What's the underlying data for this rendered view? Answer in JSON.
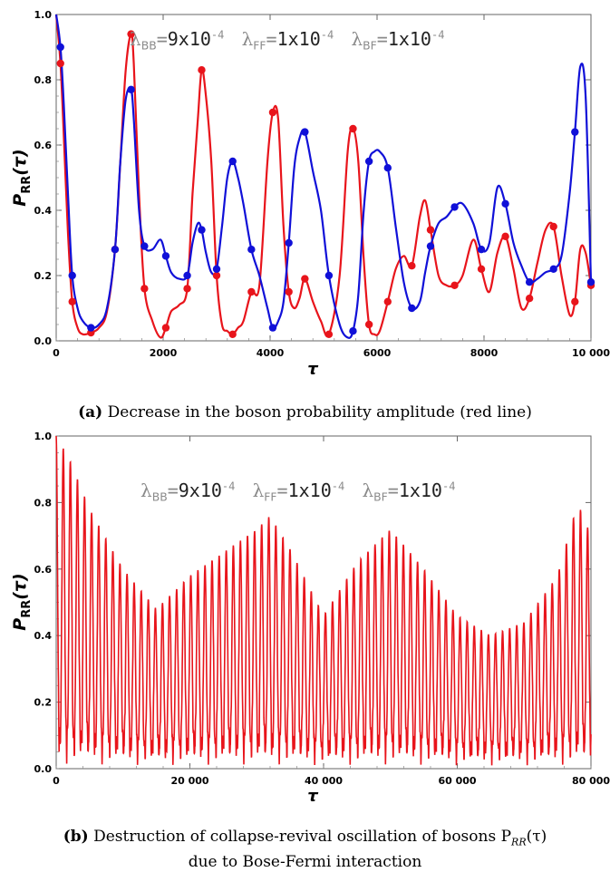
{
  "chart_data": [
    {
      "type": "line",
      "panel": "a",
      "xlabel": "τ",
      "ylabel": "P_RR(τ)",
      "xlim": [
        0,
        10000
      ],
      "ylim": [
        0,
        1.0
      ],
      "xticks": [
        0,
        2000,
        4000,
        6000,
        8000,
        10000
      ],
      "xtick_labels": [
        "0",
        "2000",
        "4000",
        "6000",
        "8000",
        "10 000"
      ],
      "yticks": [
        0.0,
        0.2,
        0.4,
        0.6,
        0.8,
        1.0
      ],
      "ytick_labels": [
        "0.0",
        "0.2",
        "0.4",
        "0.6",
        "0.8",
        "1.0"
      ],
      "annotation": {
        "parts": [
          {
            "sym": "λ",
            "sub": "BB",
            "val": "9x10",
            "exp": "-4"
          },
          {
            "sym": "λ",
            "sub": "FF",
            "val": "1x10",
            "exp": "-4"
          },
          {
            "sym": "λ",
            "sub": "BF",
            "val": "1x10",
            "exp": "-4"
          }
        ]
      },
      "caption_label": "(a)",
      "caption_text": "Decrease in the boson probability amplitude (red line)",
      "series": [
        {
          "color": "#e8141b",
          "x": [
            0,
            80,
            150,
            220,
            300,
            400,
            500,
            650,
            800,
            950,
            1100,
            1200,
            1300,
            1400,
            1450,
            1550,
            1650,
            1800,
            1950,
            2050,
            2150,
            2300,
            2450,
            2550,
            2650,
            2720,
            2800,
            2900,
            3000,
            3100,
            3200,
            3300,
            3400,
            3500,
            3650,
            3800,
            3950,
            4050,
            4150,
            4250,
            4350,
            4450,
            4550,
            4650,
            4800,
            4950,
            5100,
            5300,
            5450,
            5550,
            5650,
            5750,
            5850,
            5950,
            6050,
            6200,
            6350,
            6500,
            6650,
            6800,
            6900,
            7000,
            7150,
            7300,
            7450,
            7600,
            7800,
            7950,
            8100,
            8250,
            8400,
            8550,
            8700,
            8850,
            9000,
            9150,
            9300,
            9450,
            9600,
            9700,
            9800,
            9900,
            10000
          ],
          "y": [
            1.0,
            0.85,
            0.6,
            0.33,
            0.12,
            0.04,
            0.02,
            0.025,
            0.04,
            0.09,
            0.28,
            0.55,
            0.83,
            0.94,
            0.85,
            0.45,
            0.16,
            0.06,
            0.01,
            0.04,
            0.09,
            0.11,
            0.16,
            0.45,
            0.68,
            0.83,
            0.75,
            0.55,
            0.2,
            0.05,
            0.03,
            0.02,
            0.04,
            0.06,
            0.15,
            0.17,
            0.55,
            0.7,
            0.68,
            0.35,
            0.15,
            0.1,
            0.13,
            0.19,
            0.12,
            0.06,
            0.02,
            0.2,
            0.58,
            0.65,
            0.55,
            0.25,
            0.05,
            0.02,
            0.03,
            0.12,
            0.22,
            0.26,
            0.23,
            0.38,
            0.43,
            0.34,
            0.2,
            0.17,
            0.17,
            0.2,
            0.31,
            0.22,
            0.15,
            0.27,
            0.32,
            0.22,
            0.1,
            0.13,
            0.24,
            0.34,
            0.35,
            0.2,
            0.08,
            0.12,
            0.28,
            0.27,
            0.17
          ]
        },
        {
          "color": "#1010d8",
          "x": [
            0,
            80,
            150,
            220,
            300,
            400,
            500,
            650,
            800,
            950,
            1100,
            1200,
            1300,
            1400,
            1450,
            1550,
            1650,
            1800,
            1950,
            2050,
            2150,
            2300,
            2450,
            2550,
            2650,
            2720,
            2800,
            2900,
            3000,
            3100,
            3200,
            3300,
            3400,
            3500,
            3650,
            3800,
            3950,
            4050,
            4150,
            4250,
            4350,
            4450,
            4550,
            4650,
            4800,
            4950,
            5100,
            5300,
            5450,
            5550,
            5650,
            5750,
            5850,
            5950,
            6050,
            6200,
            6350,
            6500,
            6650,
            6800,
            6900,
            7000,
            7150,
            7300,
            7450,
            7600,
            7800,
            7950,
            8100,
            8250,
            8400,
            8550,
            8700,
            8850,
            9000,
            9150,
            9300,
            9450,
            9600,
            9700,
            9800,
            9900,
            10000
          ],
          "y": [
            1.0,
            0.9,
            0.7,
            0.45,
            0.2,
            0.1,
            0.06,
            0.04,
            0.05,
            0.1,
            0.28,
            0.55,
            0.74,
            0.77,
            0.68,
            0.4,
            0.29,
            0.28,
            0.31,
            0.26,
            0.21,
            0.19,
            0.2,
            0.3,
            0.36,
            0.34,
            0.27,
            0.21,
            0.22,
            0.35,
            0.5,
            0.55,
            0.5,
            0.42,
            0.28,
            0.2,
            0.1,
            0.04,
            0.06,
            0.12,
            0.3,
            0.53,
            0.62,
            0.64,
            0.52,
            0.4,
            0.2,
            0.05,
            0.01,
            0.03,
            0.14,
            0.4,
            0.55,
            0.58,
            0.58,
            0.53,
            0.35,
            0.18,
            0.1,
            0.12,
            0.21,
            0.29,
            0.36,
            0.38,
            0.41,
            0.42,
            0.36,
            0.28,
            0.3,
            0.47,
            0.42,
            0.3,
            0.23,
            0.18,
            0.19,
            0.21,
            0.22,
            0.26,
            0.45,
            0.64,
            0.84,
            0.75,
            0.18
          ]
        }
      ]
    },
    {
      "type": "line",
      "panel": "b",
      "xlabel": "τ",
      "ylabel": "P_RR(τ)",
      "xlim": [
        0,
        80000
      ],
      "ylim": [
        0,
        1.0
      ],
      "xticks": [
        0,
        20000,
        40000,
        60000,
        80000
      ],
      "xtick_labels": [
        "0",
        "20 000",
        "40 000",
        "60 000",
        "80 000"
      ],
      "yticks": [
        0.0,
        0.2,
        0.4,
        0.6,
        0.8,
        1.0
      ],
      "ytick_labels": [
        "0.0",
        "0.2",
        "0.4",
        "0.6",
        "0.8",
        "1.0"
      ],
      "annotation": {
        "parts": [
          {
            "sym": "λ",
            "sub": "BB",
            "val": "9x10",
            "exp": "-4"
          },
          {
            "sym": "λ",
            "sub": "FF",
            "val": "1x10",
            "exp": "-4"
          },
          {
            "sym": "λ",
            "sub": "BF",
            "val": "1x10",
            "exp": "-4"
          }
        ]
      },
      "caption_label": "(b)",
      "caption_text_line1": "Destruction of collapse-revival oscillation of bosons P",
      "caption_sub": "RR",
      "caption_tail": "(τ)",
      "caption_text_line2": "due to Bose-Fermi interaction",
      "series": [
        {
          "color": "#e8141b",
          "envelope_x": [
            0,
            2000,
            5000,
            10000,
            15000,
            20000,
            25000,
            30000,
            32000,
            35000,
            40000,
            45000,
            50000,
            55000,
            60000,
            65000,
            70000,
            75000,
            78000,
            80000
          ],
          "envelope_y": [
            1.0,
            0.93,
            0.78,
            0.6,
            0.48,
            0.58,
            0.65,
            0.72,
            0.76,
            0.66,
            0.46,
            0.62,
            0.72,
            0.6,
            0.46,
            0.4,
            0.44,
            0.58,
            0.8,
            0.7
          ]
        }
      ]
    }
  ],
  "colors": {
    "red": "#e8141b",
    "blue": "#1010d8",
    "annotation_gray": "#8a8a8a"
  }
}
